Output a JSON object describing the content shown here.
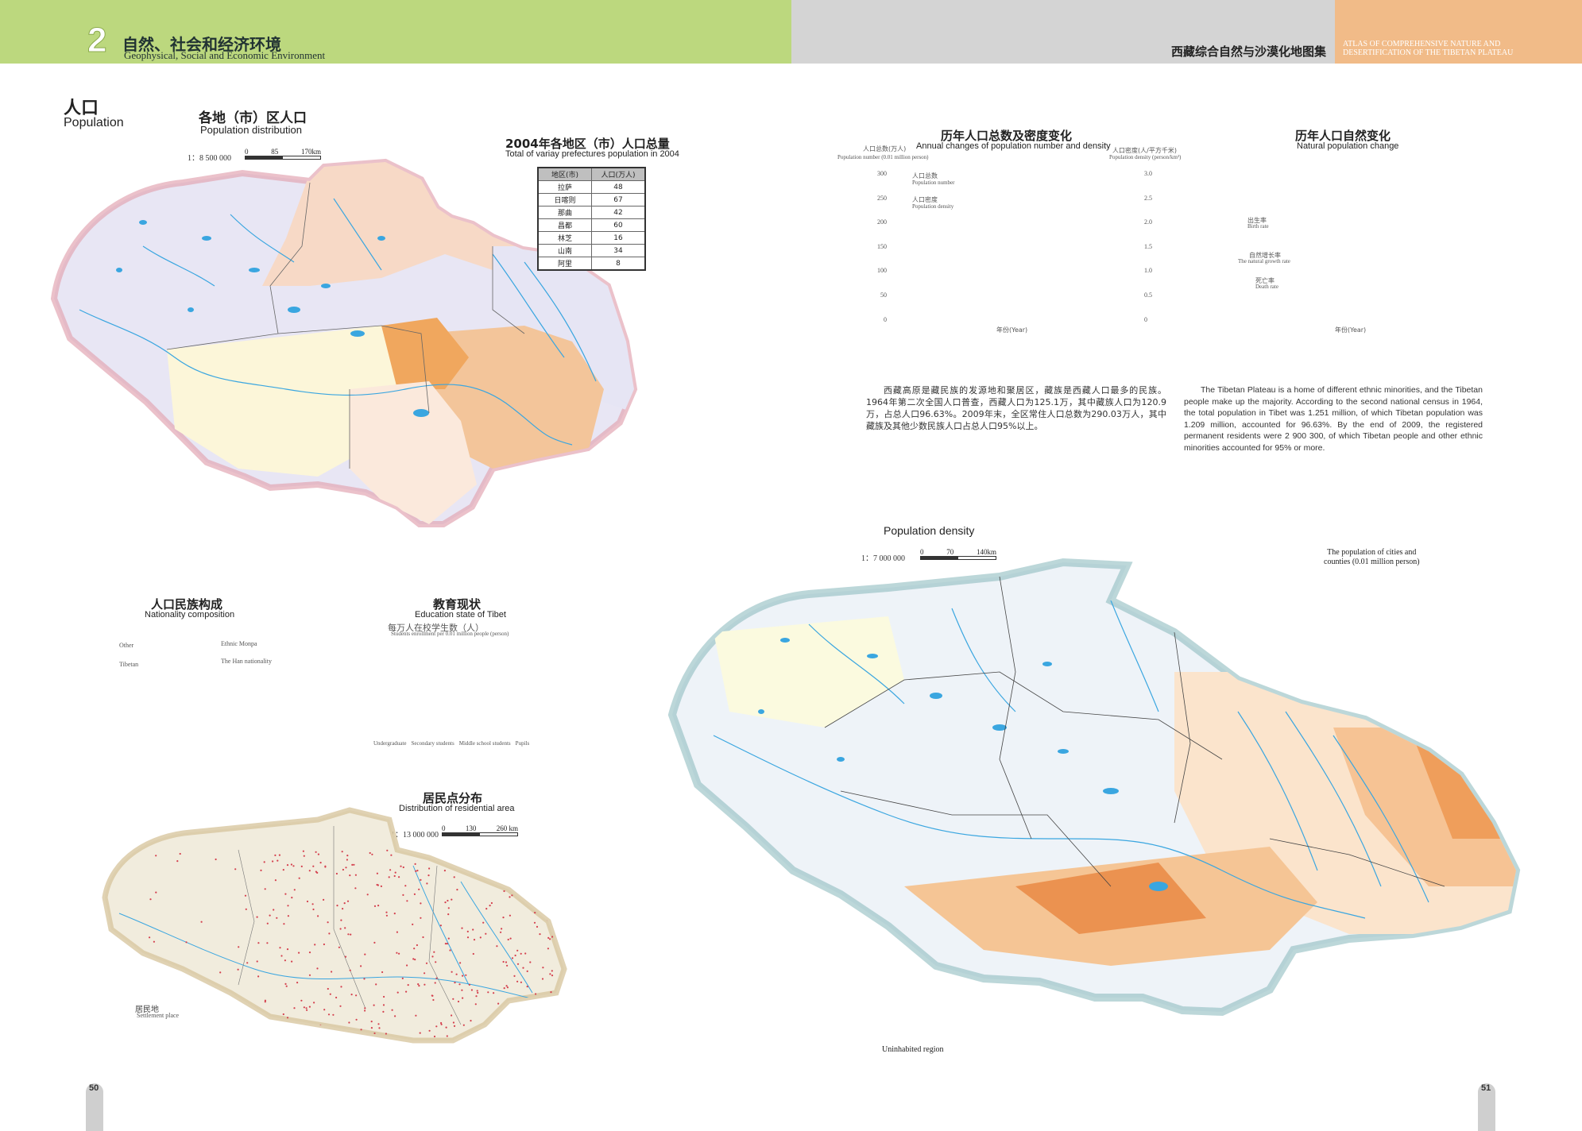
{
  "header": {
    "chapter_number": "2",
    "chapter_cn": "自然、社会和经济环境",
    "chapter_en": "Geophysical, Social and Economic Environment",
    "atlas_cn": "西藏综合自然与沙漠化地图集",
    "atlas_en_line1": "ATLAS OF COMPREHENSIVE NATURE AND",
    "atlas_en_line2": "DESERTIFICATION OF THE TIBETAN PLATEAU",
    "colors": {
      "green": "#bcd87e",
      "gray": "#d4d4d4",
      "orange": "#f1bb88"
    }
  },
  "section": {
    "cn": "人口",
    "en": "Population"
  },
  "pop_distribution": {
    "title_cn": "各地（市）区人口",
    "title_en": "Population distribution",
    "scale": "1：8 500 000",
    "scale_ticks": [
      "0",
      "85",
      "170km"
    ]
  },
  "pop_table": {
    "title_cn": "2004年各地区（市）人口总量",
    "title_en": "Total of variay prefectures population in 2004",
    "headers": [
      "地区(市)",
      "人口(万人)"
    ],
    "rows": [
      [
        "拉萨",
        "48"
      ],
      [
        "日喀则",
        "67"
      ],
      [
        "那曲",
        "42"
      ],
      [
        "昌都",
        "60"
      ],
      [
        "林芝",
        "16"
      ],
      [
        "山南",
        "34"
      ],
      [
        "阿里",
        "8"
      ]
    ]
  },
  "annual_chart": {
    "title_cn": "历年人口总数及密度变化",
    "title_en": "Annual changes of population number and density",
    "ylabel_left_cn": "人口总数(万人)",
    "ylabel_left_en": "Population number (0.01 million person)",
    "ylabel_right_cn": "人口密度(人/平方千米)",
    "ylabel_right_en": "Population density (person/km²)",
    "left_ticks": [
      "300",
      "250",
      "200",
      "150",
      "100",
      "50",
      "0"
    ],
    "right_ticks": [
      "3.0",
      "2.5",
      "2.0",
      "1.5",
      "1.0",
      "0.5",
      "0"
    ],
    "legend_number_cn": "人口总数",
    "legend_number_en": "Population number",
    "legend_density_cn": "人口密度",
    "legend_density_en": "Population density",
    "xlabel": "年份(Year)"
  },
  "natural_chart": {
    "title_cn": "历年人口自然变化",
    "title_en": "Natural population change",
    "birth_cn": "出生率",
    "birth_en": "Birth rate",
    "growth_cn": "自然增长率",
    "growth_en": "The natural growth rate",
    "death_cn": "死亡率",
    "death_en": "Death rate",
    "xlabel": "年份(Year)"
  },
  "text_cn": "西藏高原是藏民族的发源地和聚居区，藏族是西藏人口最多的民族。1964年第二次全国人口普查，西藏人口为125.1万，其中藏族人口为120.9万，占总人口96.63%。2009年末，全区常住人口总数为290.03万人，其中藏族及其他少数民族人口占总人口95%以上。",
  "text_en": "The Tibetan Plateau is a home of different ethnic minorities, and the Tibetan people make up the majority. According to the second national census in 1964, the total population in Tibet was 1.251 million, of which Tibetan population was 1.209 million, accounted for 96.63%. By the end of 2009, the registered permanent residents were 2 900 300, of which Tibetan people and other ethnic minorities accounted for 95% or more.",
  "density_map": {
    "title": "Population density",
    "scale": "1：7 000 000",
    "scale_ticks": [
      "0",
      "70",
      "140km"
    ],
    "legend_title_line1": "The population of cities and",
    "legend_title_line2": "counties (0.01 million person)",
    "uninhabited": "Uninhabited region"
  },
  "nationality": {
    "title_cn": "人口民族构成",
    "title_en": "Nationality composition",
    "labels": {
      "other": "Other",
      "monpa": "Ethnic Monpa",
      "tibetan": "Tibetan",
      "han": "The Han nationality"
    }
  },
  "education": {
    "title_cn": "教育现状",
    "title_en": "Education state of Tibet",
    "subtitle_cn": "每万人在校学生数（人）",
    "subtitle_en": "Students enrollment per 0.01 million people (person)",
    "categories": [
      "Undergraduate",
      "Secondary students",
      "Middle school students",
      "Pupils"
    ]
  },
  "residential": {
    "title_cn": "居民点分布",
    "title_en": "Distribution of residential area",
    "scale": "1：13 000 000",
    "scale_ticks": [
      "0",
      "130",
      "260 km"
    ],
    "legend_cn": "居民地",
    "legend_en": "Settlement place"
  },
  "pages": {
    "left": "50",
    "right": "51"
  }
}
